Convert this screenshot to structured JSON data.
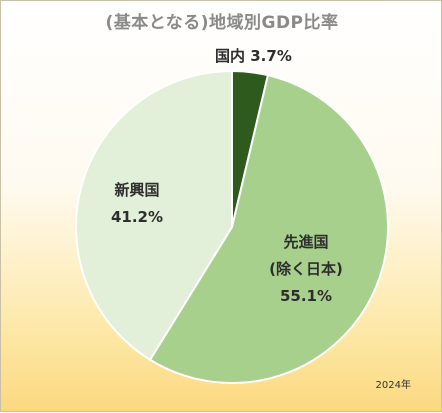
{
  "chart_data": {
    "type": "pie",
    "title": "(基本となる)地域別GDP比率",
    "slices": [
      {
        "label": "国内",
        "value": 3.7,
        "value_text": "3.7%",
        "color": "#2f5a1e"
      },
      {
        "label": "先進国\n(除く日本)",
        "value": 55.1,
        "value_text": "55.1%",
        "color": "#a8d08d"
      },
      {
        "label": "新興国",
        "value": 41.2,
        "value_text": "41.2%",
        "color": "#e2efd9"
      }
    ],
    "legend": "none",
    "note": "2024年"
  }
}
